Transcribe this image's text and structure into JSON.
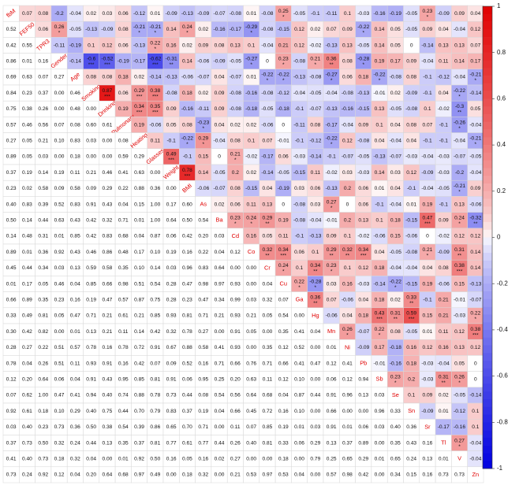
{
  "rows": [
    [
      "fbM",
      "0.07",
      "0.08",
      "-0.2",
      "-0.04",
      "0.02",
      "0.03",
      "0.06",
      "-0.12",
      "0.01",
      "-0.09",
      "-0.13",
      "-0.09",
      "-0.07",
      "-0.08",
      "0.01",
      "-0.08",
      {
        "r": "0.25",
        "stars": "*"
      },
      "-0.05",
      "-0.1",
      "-0.11",
      "0.1",
      "-0.03",
      "-0.16",
      "-0.19",
      "-0.05",
      {
        "r": "0.23",
        "stars": "*"
      },
      "-0.09",
      "0.09",
      "0.04"
    ],
    [
      "0.52",
      "FEF50",
      "0.06",
      {
        "r": "0.26",
        "stars": "*"
      },
      "-0.05",
      "-0.13",
      "-0.09",
      "0.08",
      {
        "r": "-0.21",
        "stars": "*"
      },
      {
        "r": "-0.21",
        "stars": "*"
      },
      "0.14",
      {
        "r": "0.24",
        "stars": "*"
      },
      "0.02",
      "-0.16",
      "-0.17",
      {
        "r": "-0.29",
        "stars": "*"
      },
      "-0.08",
      "-0.15",
      "0.12",
      "0.02",
      "0.07",
      "0.09",
      {
        "r": "-0.22",
        "stars": "*"
      },
      "0.14",
      "0.05",
      "-0.05",
      "0.09",
      "0.04",
      "-0.04",
      "0.12"
    ],
    [
      "0.42",
      "0.55",
      "TPR3",
      "-0.11",
      "-0.19",
      "0.1",
      "0.12",
      "0.06",
      "-0.13",
      {
        "r": "0.22",
        "stars": "*"
      },
      "0.16",
      "0.02",
      "0.09",
      "0.08",
      "0.13",
      "0.1",
      "-0.04",
      "0.21",
      "0.12",
      "-0.02",
      "-0.13",
      "0.13",
      "-0.05",
      "0.14",
      "0.05",
      "0",
      "-0.14",
      "0.13",
      "0.13",
      "0.07"
    ],
    [
      "0.86",
      "0.01",
      "0.16",
      "Gender",
      "-0.14",
      {
        "r": "-0.6",
        "stars": "***"
      },
      {
        "r": "-0.52",
        "stars": "***"
      },
      "-0.19",
      "-0.17",
      {
        "r": "-0.62",
        "stars": "***"
      },
      {
        "r": "-0.31",
        "stars": "**"
      },
      "0.14",
      "-0.06",
      "-0.09",
      "-0.05",
      {
        "r": "-0.27",
        "stars": "*"
      },
      "0",
      {
        "r": "0.23",
        "stars": "*"
      },
      "-0.08",
      {
        "r": "0.21",
        "stars": "*"
      },
      {
        "r": "0.36",
        "stars": "**"
      },
      "0.08",
      {
        "r": "-0.28",
        "stars": "*"
      },
      "0.19",
      "0.17",
      "0.09",
      "-0.04",
      "0.11",
      "0.14",
      "0.17"
    ],
    [
      "0.69",
      "0.63",
      "0.07",
      "0.27",
      "Age",
      "0.08",
      "0.08",
      "0.18",
      "0.02",
      "-0.14",
      "-0.13",
      "-0.06",
      "-0.07",
      "0.04",
      "-0.07",
      "0.01",
      {
        "r": "-0.22",
        "stars": "*"
      },
      {
        "r": "-0.22",
        "stars": "*"
      },
      "-0.13",
      "-0.08",
      {
        "r": "-0.27",
        "stars": "*"
      },
      "0.06",
      "0.18",
      {
        "r": "-0.22",
        "stars": "*"
      },
      "-0.08",
      "0.08",
      "-0.1",
      "-0.12",
      "-0.04",
      {
        "r": "-0.21",
        "stars": "*"
      }
    ],
    [
      "0.84",
      "0.23",
      "0.37",
      "0.00",
      "0.46",
      "Smoking",
      {
        "r": "0.87",
        "stars": "***"
      },
      "0.06",
      {
        "r": "0.29",
        "stars": "***"
      },
      {
        "r": "0.38",
        "stars": "***"
      },
      "-0.08",
      "0.18",
      "0.02",
      "0.09",
      "-0.08",
      "-0.16",
      "-0.08",
      "-0.12",
      "-0.04",
      "-0.05",
      "-0.04",
      "-0.08",
      "-0.13",
      "-0.01",
      "0.02",
      "-0.09",
      "-0.1",
      "0.04",
      {
        "r": "-0.22",
        "stars": "*"
      },
      "-0.14"
    ],
    [
      "0.75",
      "0.38",
      "0.26",
      "0.00",
      "0.48",
      "0.00",
      "Drinking",
      "0.19",
      {
        "r": "0.34",
        "stars": "***"
      },
      {
        "r": "0.35",
        "stars": "***"
      },
      "0.09",
      "-0.16",
      "-0.11",
      "0.09",
      "-0.08",
      "-0.18",
      "-0.05",
      "-0.18",
      "-0.1",
      "-0.07",
      "-0.13",
      "-0.16",
      "-0.15",
      "0.13",
      "-0.05",
      "-0.08",
      "0.1",
      "-0.02",
      {
        "r": "-0.3",
        "stars": "**"
      },
      "0.05"
    ],
    [
      "0.57",
      "0.46",
      "0.56",
      "0.07",
      "0.08",
      "0.60",
      "0.61",
      "Pulmonary",
      "0.19",
      "-0.06",
      "0.05",
      "0.08",
      {
        "r": "-0.23",
        "stars": "*"
      },
      "0.04",
      "0.02",
      "0.02",
      "-0.06",
      "0",
      "-0.11",
      "0.08",
      "-0.17",
      "-0.04",
      "0.09",
      "0.1",
      "0.04",
      "0.08",
      "0.07",
      "-0.1",
      {
        "r": "-0.26",
        "stars": "*"
      },
      "-0.04"
    ],
    [
      "0.27",
      "0.05",
      "0.21",
      "0.10",
      "0.83",
      "0.03",
      "0.00",
      "0.08",
      "Heating",
      "0.11",
      "-0.1",
      {
        "r": "-0.22",
        "stars": "*"
      },
      {
        "r": "0.29",
        "stars": "*"
      },
      "-0.04",
      "0.08",
      "0.1",
      "0.07",
      "-0.01",
      "-0.1",
      "-0.12",
      {
        "r": "-0.22",
        "stars": "*"
      },
      "0.12",
      "-0.08",
      "0.04",
      "-0.04",
      "0.04",
      "-0.1",
      "-0.1",
      "-0.04",
      {
        "r": "-0.21",
        "stars": "*"
      }
    ],
    [
      "0.89",
      "0.05",
      "0.03",
      "0.00",
      "0.18",
      "0.00",
      "0.00",
      "0.59",
      "0.29",
      "Glasses",
      {
        "r": "0.49",
        "stars": "***"
      },
      "-0.1",
      "0.15",
      "0",
      {
        "r": "0.21",
        "stars": "*"
      },
      "-0.02",
      "-0.17",
      "0.06",
      "-0.03",
      "-0.14",
      "-0.1",
      "-0.07",
      "-0.05",
      "-0.13",
      "-0.07",
      "-0.03",
      "-0.04",
      "-0.03",
      "-0.07",
      "-0.05"
    ],
    [
      "0.37",
      "0.19",
      "0.14",
      "0.19",
      "0.11",
      "0.21",
      "0.46",
      "0.41",
      "0.63",
      "0.00",
      "Weight",
      {
        "r": "0.78",
        "stars": "***"
      },
      "0.14",
      "-0.05",
      "0.2",
      "0.02",
      "-0.14",
      "-0.05",
      "-0.15",
      "0.11",
      "-0.02",
      "0.03",
      "-0.03",
      "0.14",
      "0.03",
      "0.12",
      "-0.09",
      "-0.03",
      "-0.2",
      "-0.04"
    ],
    [
      "0.23",
      "0.02",
      "0.58",
      "0.09",
      "0.58",
      "0.09",
      "0.29",
      "0.22",
      "0.88",
      "0.36",
      "0.00",
      "BMI",
      "-0.06",
      "-0.07",
      "0.08",
      "-0.15",
      "0.04",
      "-0.19",
      "0.03",
      "0.06",
      "-0.13",
      "0.2",
      "0.06",
      "0.01",
      "0.04",
      "-0.1",
      "-0.04",
      "-0.05",
      {
        "r": "-0.21",
        "stars": "*"
      },
      "0.09"
    ],
    [
      "0.40",
      "0.83",
      "0.39",
      "0.52",
      "0.83",
      "0.91",
      "0.43",
      "0.04",
      "0.15",
      "1.00",
      "0.17",
      "0.60",
      "As",
      "0.02",
      "0.06",
      "0.11",
      "0.13",
      "0",
      "-0.08",
      "0.03",
      {
        "r": "0.27",
        "stars": "*"
      },
      "0",
      "0.06",
      "-0.1",
      "-0.04",
      "0.01",
      "0.19",
      "-0.1",
      "0.13",
      "-0.06"
    ],
    [
      "0.50",
      "0.14",
      "0.44",
      "0.63",
      "0.43",
      "0.42",
      "0.32",
      "0.71",
      "0.01",
      "1.00",
      "0.64",
      "0.50",
      "0.54",
      "Ba",
      {
        "r": "0.23",
        "stars": "*"
      },
      {
        "r": "0.24",
        "stars": "*"
      },
      {
        "r": "0.29",
        "stars": "**"
      },
      "0.19",
      "-0.08",
      "-0.04",
      "-0.01",
      "0.2",
      "0.13",
      "0.1",
      "0.18",
      "-0.15",
      {
        "r": "0.47",
        "stars": "***"
      },
      "0.09",
      {
        "r": "0.24",
        "stars": "*"
      },
      {
        "r": "-0.32",
        "stars": "**"
      }
    ],
    [
      "0.14",
      "0.48",
      "0.31",
      "0.01",
      "0.85",
      "0.42",
      "0.83",
      "0.68",
      "0.04",
      "0.87",
      "0.06",
      "0.42",
      "0.20",
      "0.03",
      "Cd",
      "0.16",
      "0.05",
      "0.11",
      "-0.1",
      "-0.13",
      "0.09",
      "0.1",
      "-0.02",
      "-0.06",
      "0.15",
      "-0.06",
      "0",
      "-0.02",
      "0.12",
      "0.12"
    ],
    [
      "0.89",
      "0.01",
      "0.36",
      "0.92",
      "0.43",
      "0.46",
      "0.86",
      "0.48",
      "0.17",
      "0.10",
      "0.19",
      "0.16",
      "0.22",
      "0.04",
      "0.12",
      "Co",
      {
        "r": "0.32",
        "stars": "**"
      },
      {
        "r": "0.34",
        "stars": "***"
      },
      "0.06",
      "0.1",
      {
        "r": "0.29",
        "stars": "**"
      },
      {
        "r": "0.32",
        "stars": "**"
      },
      {
        "r": "0.34",
        "stars": "***"
      },
      "0.04",
      "-0.05",
      "-0.08",
      {
        "r": "0.21",
        "stars": "*"
      },
      "-0.09",
      {
        "r": "0.31",
        "stars": "**"
      },
      "0.14"
    ],
    [
      "0.45",
      "0.44",
      "0.34",
      "0.03",
      "0.13",
      "0.59",
      "0.58",
      "0.35",
      "0.10",
      "0.14",
      "0.03",
      "0.96",
      "0.83",
      "0.64",
      "0.00",
      "0.00",
      "Cr",
      {
        "r": "0.24",
        "stars": "*"
      },
      "0.1",
      {
        "r": "0.34",
        "stars": "**"
      },
      {
        "r": "0.23",
        "stars": "*"
      },
      "0.1",
      "0.12",
      "0.18",
      "-0.04",
      "-0.04",
      "0.04",
      "0.08",
      {
        "r": "0.38",
        "stars": "***"
      },
      "0.14"
    ],
    [
      "0.01",
      "0.17",
      "0.05",
      "0.46",
      "0.04",
      "0.85",
      "0.66",
      "0.98",
      "0.51",
      "0.54",
      "0.28",
      "0.47",
      "0.98",
      "0.97",
      "0.93",
      "0.00",
      "0.04",
      "Cu",
      {
        "r": "0.22",
        "stars": "*"
      },
      {
        "r": "-0.28",
        "stars": "*"
      },
      "0.03",
      "0.16",
      "-0.03",
      "-0.14",
      {
        "r": "-0.22",
        "stars": "*"
      },
      "-0.15",
      "0.19",
      "-0.06",
      "0.15",
      "-0.13"
    ],
    [
      "0.66",
      "0.89",
      "0.35",
      "0.23",
      "0.16",
      "0.19",
      "0.47",
      "0.57",
      "0.87",
      "0.75",
      "0.28",
      "0.23",
      "0.47",
      "0.34",
      "0.99",
      "0.03",
      "0.32",
      "0.07",
      "Ga",
      {
        "r": "0.36",
        "stars": "**"
      },
      "0.07",
      "-0.06",
      "0.04",
      "0.18",
      "0.02",
      {
        "r": "0.33",
        "stars": "**"
      },
      "-0.1",
      "0.21",
      "-0.01",
      "-0.07"
    ],
    [
      "0.33",
      "0.49",
      "0.81",
      "0.05",
      "0.47",
      "0.71",
      "0.21",
      "0.61",
      "0.21",
      "0.85",
      "0.93",
      "0.81",
      "0.71",
      "0.21",
      "0.93",
      "0.21",
      "0.05",
      "0.54",
      "0.00",
      "Hg",
      "-0.06",
      "0.04",
      "0.18",
      {
        "r": "0.43",
        "stars": "***"
      },
      {
        "r": "0.31",
        "stars": "**"
      },
      {
        "r": "0.59",
        "stars": "***"
      },
      "0.15",
      "0.21",
      "-0.03",
      {
        "r": "0.22",
        "stars": "*"
      }
    ],
    [
      "0.30",
      "0.42",
      "0.82",
      "0.00",
      "0.01",
      "0.13",
      "0.21",
      "0.11",
      "0.14",
      "0.42",
      "0.32",
      "0.78",
      "0.27",
      "0.00",
      "0.91",
      "0.05",
      "0.00",
      "0.35",
      "0.41",
      "0.04",
      "Mn",
      {
        "r": "0.26",
        "stars": "*"
      },
      "-0.07",
      {
        "r": "0.22",
        "stars": "*"
      },
      "0.08",
      "-0.05",
      "0.01",
      "0.11",
      "0.12",
      {
        "r": "0.38",
        "stars": "***"
      }
    ],
    [
      "0.28",
      "0.27",
      "0.22",
      "0.51",
      "0.57",
      "0.78",
      "0.16",
      "0.78",
      "0.72",
      "0.91",
      "0.67",
      "0.88",
      "0.58",
      "0.41",
      "0.93",
      "0.00",
      "0.35",
      "0.12",
      "0.52",
      "0.00",
      "0.01",
      "Ni",
      "-0.09",
      "0.17",
      "-0.18",
      "0.16",
      "0.12",
      "0.16",
      "0.13",
      "0.12"
    ],
    [
      "0.78",
      "0.04",
      "0.26",
      "0.51",
      "0.11",
      "0.93",
      "0.91",
      "0.16",
      "0.42",
      "0.07",
      "0.09",
      "0.52",
      "0.16",
      "0.71",
      "0.66",
      "0.76",
      "0.71",
      "0.66",
      "0.41",
      "0.47",
      "0.12",
      "0.41",
      "Pb",
      "-0.01",
      "-0.16",
      "0.18",
      "-0.03",
      "-0.04",
      "0.05",
      "0"
    ],
    [
      "0.12",
      "0.20",
      "0.64",
      "0.06",
      "0.04",
      "0.91",
      "0.43",
      "0.95",
      "0.85",
      "0.81",
      "0.91",
      "0.06",
      "0.95",
      "0.25",
      "0.20",
      "0.63",
      "0.11",
      "0.12",
      "0.10",
      "0.00",
      "0.06",
      "0.12",
      "0.94",
      "Sb",
      {
        "r": "0.23",
        "stars": "*"
      },
      "0.2",
      "-0.03",
      {
        "r": "0.31",
        "stars": "**"
      },
      {
        "r": "0.26",
        "stars": "*"
      },
      "0"
    ],
    [
      "0.07",
      "0.62",
      "1.00",
      "0.47",
      "0.41",
      "0.94",
      "0.40",
      "0.74",
      "0.88",
      "0.78",
      "0.73",
      "0.44",
      "0.08",
      "0.54",
      "0.56",
      "0.64",
      "0.68",
      "0.04",
      "0.87",
      "0.44",
      "0.91",
      "0.96",
      "0.13",
      "0.03",
      "Se",
      "0.1",
      "0.09",
      "0.02",
      "-0.05",
      "-0.14"
    ],
    [
      "0.92",
      "0.61",
      "0.18",
      "0.10",
      "0.29",
      "0.40",
      "0.75",
      "0.44",
      "0.70",
      "0.79",
      "0.83",
      "0.37",
      "0.19",
      "0.04",
      "0.66",
      "0.45",
      "0.72",
      "0.16",
      "0.10",
      "0.00",
      "0.66",
      "0.00",
      "0.00",
      "0.96",
      "0.33",
      "Sn",
      "-0.09",
      "0.01",
      "-0.12",
      "0.1"
    ],
    [
      "0.03",
      "0.40",
      "0.23",
      "0.73",
      "0.36",
      "0.50",
      "0.38",
      "0.54",
      "0.39",
      "0.86",
      "0.65",
      "0.70",
      "0.71",
      "0.00",
      "0.11",
      "0.07",
      "0.85",
      "0.19",
      "0.01",
      "0.03",
      "0.91",
      "0.01",
      "0.06",
      "0.03",
      "0.40",
      "0.36",
      "Sr",
      "-0.17",
      "-0.16",
      "0.1"
    ],
    [
      "0.37",
      "0.73",
      "0.50",
      "0.32",
      "0.24",
      "0.44",
      "0.13",
      "0.35",
      "0.37",
      "0.81",
      "0.77",
      "0.61",
      "0.77",
      "0.44",
      "0.26",
      "0.40",
      "0.81",
      "0.33",
      "0.06",
      "0.29",
      "0.13",
      "0.37",
      "0.89",
      "0.00",
      "0.35",
      "0.43",
      "0.16",
      "Tl",
      {
        "r": "0.27",
        "stars": "*"
      },
      "-0.04"
    ],
    [
      "0.41",
      "0.40",
      "0.73",
      "0.18",
      "0.32",
      "0.04",
      "0.00",
      "0.01",
      "0.92",
      "0.50",
      "0.16",
      "0.05",
      "0.16",
      "0.02",
      "0.27",
      "0.00",
      "0.00",
      "0.18",
      "0.00",
      "0.79",
      "0.25",
      "0.65",
      "0.29",
      "0.01",
      "0.65",
      "0.24",
      "0.13",
      "0.01",
      "V",
      "-0.04"
    ],
    [
      "0.73",
      "0.24",
      "0.92",
      "0.12",
      "0.04",
      "0.20",
      "0.64",
      "0.68",
      "0.97",
      "0.49",
      "0.00",
      "0.18",
      "0.32",
      "0.00",
      "0.21",
      "0.53",
      "0.97",
      "0.53",
      "0.04",
      "0.00",
      "0.57",
      "0.98",
      "0.42",
      "0.00",
      "0.34",
      "0.15",
      "0.16",
      "0.73",
      "0.73",
      "Zn"
    ]
  ],
  "colorbar": {
    "ticks": [
      1,
      0.8,
      0.6,
      0.4,
      0.2,
      0,
      -0.2,
      -0.4,
      -0.6,
      -0.8,
      -1
    ]
  }
}
